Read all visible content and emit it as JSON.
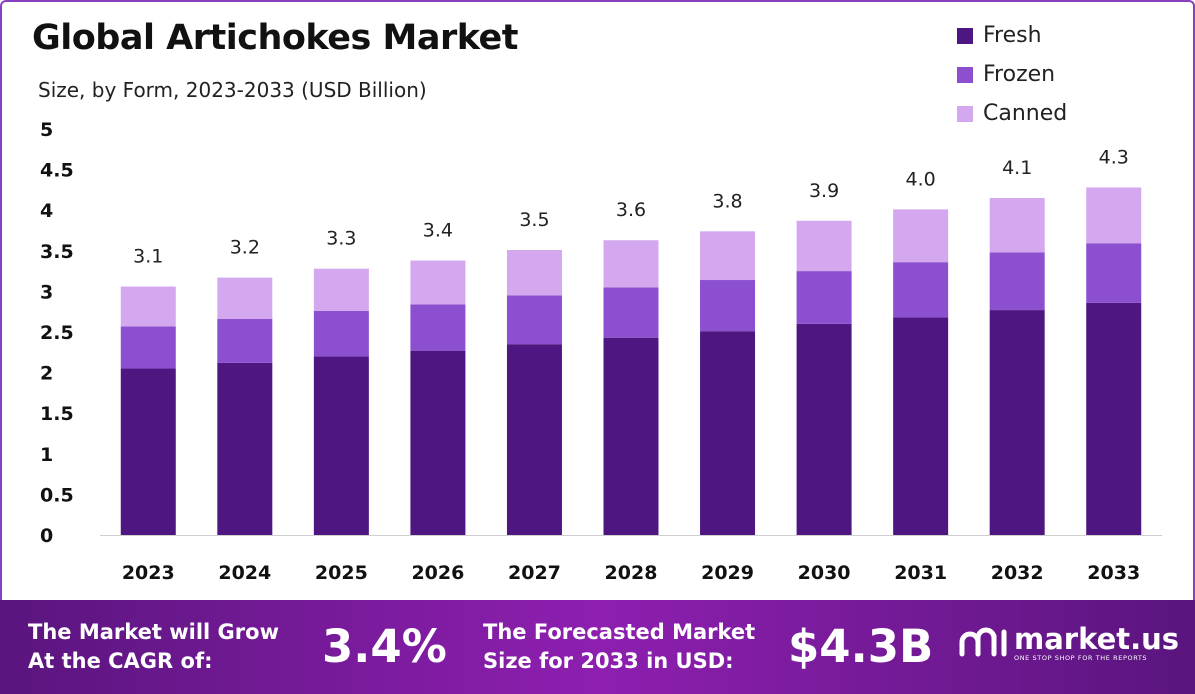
{
  "chart_data": {
    "type": "bar",
    "stacked": true,
    "title": "Global Artichokes Market",
    "subtitle": "Size, by Form, 2023-2033 (USD Billion)",
    "categories": [
      "2023",
      "2024",
      "2025",
      "2026",
      "2027",
      "2028",
      "2029",
      "2030",
      "2031",
      "2032",
      "2033"
    ],
    "series": [
      {
        "name": "Fresh",
        "color": "#4e1680",
        "values": [
          2.05,
          2.12,
          2.2,
          2.27,
          2.35,
          2.43,
          2.51,
          2.6,
          2.68,
          2.77,
          2.86
        ]
      },
      {
        "name": "Frozen",
        "color": "#8b4fcf",
        "values": [
          0.52,
          0.54,
          0.56,
          0.57,
          0.6,
          0.62,
          0.63,
          0.65,
          0.68,
          0.71,
          0.73
        ]
      },
      {
        "name": "Canned",
        "color": "#d3a8ee",
        "values": [
          0.49,
          0.51,
          0.52,
          0.54,
          0.56,
          0.58,
          0.6,
          0.62,
          0.65,
          0.67,
          0.69
        ]
      }
    ],
    "totals_labels": [
      "3.1",
      "3.2",
      "3.3",
      "3.4",
      "3.5",
      "3.6",
      "3.8",
      "3.9",
      "4.0",
      "4.1",
      "4.3"
    ],
    "ylim": [
      0,
      5
    ],
    "yticks": [
      "0",
      "0.5",
      "1",
      "1.5",
      "2",
      "2.5",
      "3",
      "3.5",
      "4",
      "4.5",
      "5"
    ],
    "legend_position": "top-right",
    "grid": false
  },
  "footer": {
    "cagr_label_1": "The Market will Grow",
    "cagr_label_2": "At the CAGR of:",
    "cagr_value": "3.4%",
    "forecast_label_1": "The Forecasted Market",
    "forecast_label_2": "Size for 2033 in USD:",
    "forecast_value": "$4.3B",
    "brand_name": "market.us",
    "brand_tagline": "ONE STOP SHOP FOR THE REPORTS"
  }
}
